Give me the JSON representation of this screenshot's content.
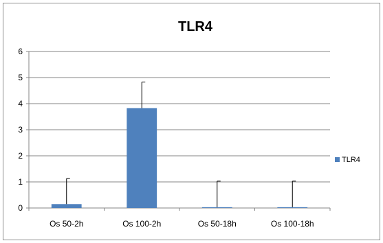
{
  "chart_data": {
    "type": "bar",
    "title": "TLR4",
    "xlabel": "",
    "ylabel": "",
    "categories": [
      "Os 50-2h",
      "Os 100-2h",
      "Os 50-18h",
      "Os 100-18h"
    ],
    "series": [
      {
        "name": "TLR4",
        "values": [
          0.15,
          3.83,
          0.03,
          0.03
        ],
        "error_plus": [
          0.98,
          1.0,
          1.0,
          1.0
        ],
        "color": "#4f81bd"
      }
    ],
    "ylim": [
      0,
      6
    ],
    "yticks": [
      "0",
      "1",
      "2",
      "3",
      "4",
      "5",
      "6"
    ],
    "grid": true,
    "legend_position": "right"
  }
}
